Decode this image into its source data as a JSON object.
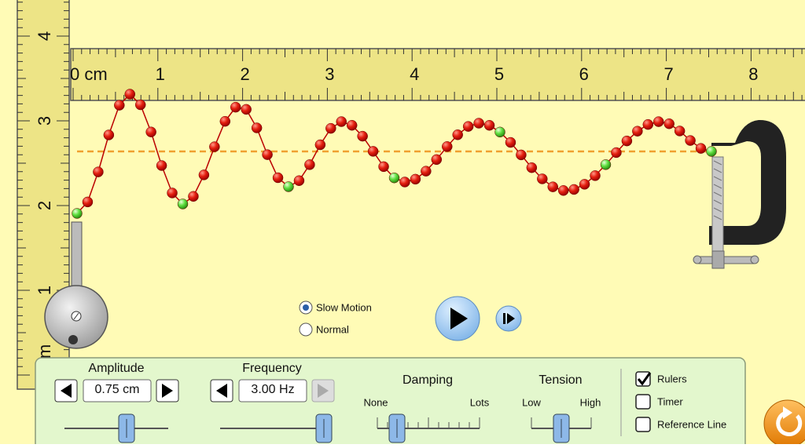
{
  "rulers": {
    "vertical": {
      "labels": [
        "4",
        "3",
        "2",
        "1"
      ],
      "unit": "m"
    },
    "horizontal": {
      "labels": [
        "0 cm",
        "1",
        "2",
        "3",
        "4",
        "5",
        "6",
        "7",
        "8"
      ]
    }
  },
  "playback": {
    "speed_options": [
      {
        "label": "Slow Motion",
        "checked": true
      },
      {
        "label": "Normal",
        "checked": false
      }
    ]
  },
  "controls": {
    "amplitude": {
      "label": "Amplitude",
      "value": "0.75 cm"
    },
    "frequency": {
      "label": "Frequency",
      "value": "3.00 Hz"
    },
    "damping": {
      "label": "Damping",
      "min_label": "None",
      "max_label": "Lots"
    },
    "tension": {
      "label": "Tension",
      "min_label": "Low",
      "max_label": "High"
    }
  },
  "checkboxes": [
    {
      "label": "Rulers",
      "checked": true
    },
    {
      "label": "Timer",
      "checked": false
    },
    {
      "label": "Reference Line",
      "checked": false
    }
  ]
}
